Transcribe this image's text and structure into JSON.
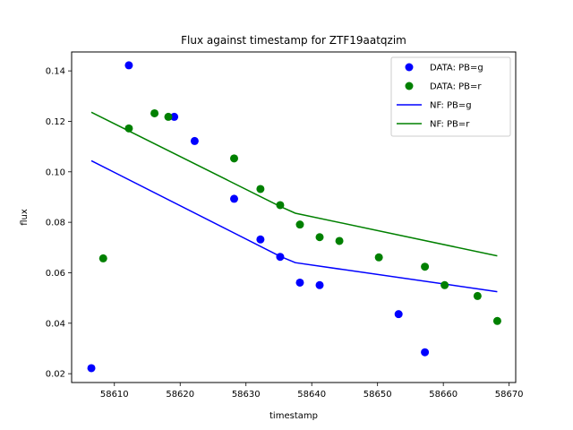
{
  "chart_data": {
    "type": "scatter",
    "title": "Flux against timestamp for ZTF19aatqzim",
    "xlabel": "timestamp",
    "ylabel": "flux",
    "xlim": [
      58603.5,
      58671.0
    ],
    "ylim": [
      0.0165,
      0.1475
    ],
    "xticks": [
      58610,
      58620,
      58630,
      58640,
      58650,
      58660,
      58670
    ],
    "yticks": [
      0.02,
      0.04,
      0.06,
      0.08,
      0.1,
      0.12,
      0.14
    ],
    "ytick_labels": [
      "0.02",
      "0.04",
      "0.06",
      "0.08",
      "0.10",
      "0.12",
      "0.14"
    ],
    "grid": false,
    "legend": "top-right",
    "series": [
      {
        "name": "DATA: PB=g",
        "kind": "scatter",
        "color": "#0000ff",
        "x": [
          58606.5,
          58612.2,
          58619.1,
          58622.2,
          58628.2,
          58632.2,
          58635.2,
          58638.2,
          58641.2,
          58653.2,
          58657.2
        ],
        "y": [
          0.0222,
          0.1422,
          0.1218,
          0.1122,
          0.0893,
          0.0732,
          0.0663,
          0.0561,
          0.0551,
          0.0436,
          0.0285
        ]
      },
      {
        "name": "DATA: PB=r",
        "kind": "scatter",
        "color": "#008000",
        "x": [
          58608.3,
          58612.2,
          58616.1,
          58618.2,
          58628.2,
          58632.2,
          58635.2,
          58638.2,
          58641.2,
          58644.2,
          58650.2,
          58657.2,
          58660.2,
          58665.2,
          58668.2
        ],
        "y": [
          0.0657,
          0.1172,
          0.1232,
          0.1218,
          0.1053,
          0.0932,
          0.0868,
          0.0791,
          0.0741,
          0.0726,
          0.0661,
          0.0624,
          0.0551,
          0.0508,
          0.0409
        ]
      },
      {
        "name": "NF: PB=g",
        "kind": "line",
        "color": "#0000ff",
        "x": [
          58606.5,
          58635.2,
          58637.5,
          58668.2
        ],
        "y": [
          0.1044,
          0.0665,
          0.064,
          0.0525
        ]
      },
      {
        "name": "NF: PB=r",
        "kind": "line",
        "color": "#008000",
        "x": [
          58606.5,
          58635.2,
          58637.5,
          58668.2
        ],
        "y": [
          0.1236,
          0.0863,
          0.0836,
          0.0667
        ]
      }
    ]
  }
}
